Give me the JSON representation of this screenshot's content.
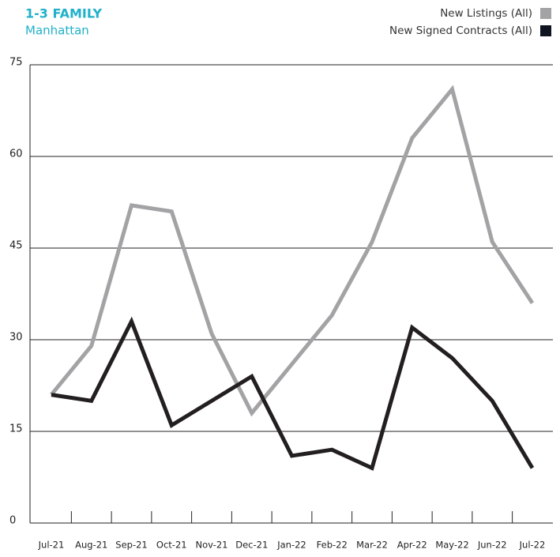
{
  "chart_data": {
    "type": "line",
    "title": "1-3 FAMILY",
    "subtitle": "Manhattan",
    "categories": [
      "Jul-21",
      "Aug-21",
      "Sep-21",
      "Oct-21",
      "Nov-21",
      "Dec-21",
      "Jan-22",
      "Feb-22",
      "Mar-22",
      "Apr-22",
      "May-22",
      "Jun-22",
      "Jul-22"
    ],
    "series": [
      {
        "name": "New Listings (All)",
        "color": "#a3a3a6",
        "values": [
          21,
          29,
          52,
          51,
          31,
          18,
          26,
          34,
          46,
          63,
          71,
          46,
          36
        ]
      },
      {
        "name": "New Signed Contracts (All)",
        "color": "#231f20",
        "values": [
          21,
          20,
          33,
          16,
          20,
          24,
          11,
          12,
          9,
          32,
          27,
          20,
          9
        ]
      }
    ],
    "ylim": [
      0,
      75
    ],
    "yticks": [
      0,
      15,
      30,
      45,
      60,
      75
    ],
    "grid": true,
    "legend": "top-right"
  }
}
